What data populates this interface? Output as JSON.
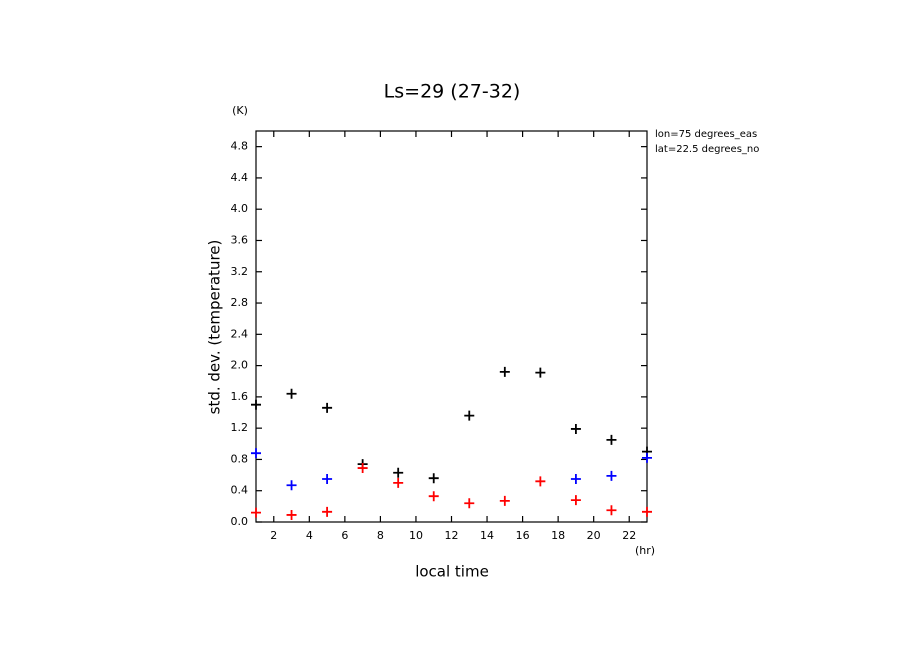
{
  "chart_data": {
    "type": "scatter",
    "title": "Ls=29 (27-32)",
    "y_unit": "(K)",
    "x_unit": "(hr)",
    "y_label": "std. dev. (temperature)",
    "x_label": "local time",
    "annotations": [
      "lon=75 degrees_eas",
      "lat=22.5 degrees_no"
    ],
    "x": [
      1,
      3,
      5,
      7,
      9,
      11,
      13,
      15,
      17,
      19,
      21,
      23
    ],
    "series": [
      {
        "color": "#000000",
        "values": [
          1.5,
          1.64,
          1.46,
          0.74,
          0.63,
          0.56,
          1.36,
          1.92,
          1.91,
          1.19,
          1.05,
          0.9
        ]
      },
      {
        "color": "#0000ff",
        "values": [
          0.88,
          0.47,
          0.55,
          null,
          null,
          null,
          null,
          null,
          null,
          0.55,
          0.59,
          0.82
        ]
      },
      {
        "color": "#ff0000",
        "values": [
          0.12,
          0.09,
          0.13,
          0.69,
          0.5,
          0.33,
          0.24,
          0.27,
          0.52,
          0.28,
          0.15,
          0.13
        ]
      }
    ],
    "xlim": [
      1,
      23
    ],
    "ylim": [
      0,
      5
    ],
    "xticks": [
      2,
      4,
      6,
      8,
      10,
      12,
      14,
      16,
      18,
      20,
      22
    ],
    "yticks": [
      {
        "value": 0,
        "label": "0.0"
      },
      {
        "value": 0.4,
        "label": "0.4"
      },
      {
        "value": 0.8,
        "label": "0.8"
      },
      {
        "value": 1.2,
        "label": "1.2"
      },
      {
        "value": 1.6,
        "label": "1.6"
      },
      {
        "value": 2.0,
        "label": "2.0"
      },
      {
        "value": 2.4,
        "label": "2.4"
      },
      {
        "value": 2.8,
        "label": "2.8"
      },
      {
        "value": 3.2,
        "label": "3.2"
      },
      {
        "value": 3.6,
        "label": "3.6"
      },
      {
        "value": 4.0,
        "label": "4.0"
      },
      {
        "value": 4.4,
        "label": "4.4"
      },
      {
        "value": 4.8,
        "label": "4.8"
      }
    ]
  }
}
